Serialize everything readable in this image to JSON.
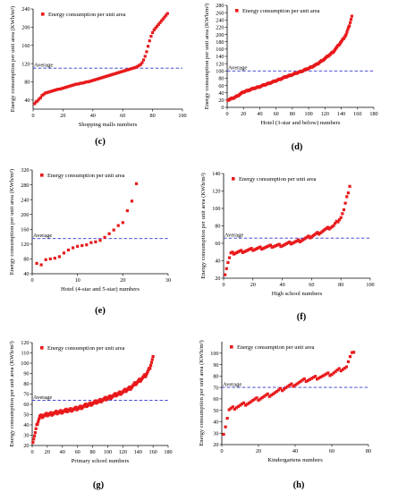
{
  "chart_data": [
    {
      "type": "scatter",
      "panel": "(c)",
      "legend": "Energy consumption per unit area",
      "xlabel": "Shopping malls numbers",
      "ylabel": "Energy consumption per unit area (KWh/m²)",
      "average_label": "Average",
      "average": 110,
      "xlim": [
        0,
        100
      ],
      "ylim": [
        20,
        240
      ],
      "xticks": [
        0,
        20,
        40,
        60,
        80,
        100
      ],
      "yticks": [
        40,
        80,
        120,
        160,
        200,
        240
      ],
      "colors": {
        "points": "#e8191b",
        "average": "#3333cc"
      },
      "x": [
        1,
        2,
        3,
        4,
        5,
        6,
        7,
        8,
        9,
        10,
        11,
        12,
        13,
        14,
        15,
        16,
        17,
        18,
        19,
        20,
        21,
        22,
        23,
        24,
        25,
        26,
        27,
        28,
        29,
        30,
        31,
        32,
        33,
        34,
        35,
        36,
        37,
        38,
        39,
        40,
        41,
        42,
        43,
        44,
        45,
        46,
        47,
        48,
        49,
        50,
        51,
        52,
        53,
        54,
        55,
        56,
        57,
        58,
        59,
        60,
        61,
        62,
        63,
        64,
        65,
        66,
        67,
        68,
        69,
        70,
        71,
        72,
        73,
        74,
        75,
        76,
        77,
        78,
        79,
        80,
        81,
        82,
        83,
        84,
        85,
        86,
        87,
        88,
        89,
        90
      ],
      "y": [
        32,
        36,
        38,
        42,
        45,
        50,
        52,
        55,
        56,
        57,
        58,
        59,
        60,
        61,
        62,
        63,
        64,
        64,
        65,
        66,
        67,
        68,
        69,
        70,
        71,
        72,
        73,
        74,
        75,
        75,
        76,
        77,
        77,
        78,
        79,
        80,
        80,
        81,
        82,
        83,
        84,
        85,
        86,
        87,
        88,
        89,
        90,
        91,
        92,
        93,
        94,
        95,
        96,
        97,
        98,
        99,
        100,
        101,
        102,
        103,
        104,
        105,
        106,
        107,
        108,
        109,
        110,
        111,
        112,
        114,
        116,
        118,
        122,
        128,
        136,
        146,
        158,
        170,
        180,
        188,
        194,
        198,
        202,
        206,
        210,
        214,
        218,
        222,
        226,
        230
      ]
    },
    {
      "type": "scatter",
      "panel": "(d)",
      "legend": "Energy consumption per unit area",
      "xlabel": "Hotel (3-star and below) numbers",
      "ylabel": "Energy consumption per unit area (KWh/m²)",
      "average_label": "Average",
      "average": 100,
      "xlim": [
        0,
        180
      ],
      "ylim": [
        0,
        280
      ],
      "xticks": [
        0,
        20,
        40,
        60,
        80,
        100,
        120,
        140,
        160,
        180
      ],
      "yticks": [
        0,
        20,
        40,
        60,
        80,
        100,
        120,
        140,
        160,
        180,
        200,
        220,
        240,
        260,
        280
      ],
      "colors": {
        "points": "#e8191b",
        "average": "#3333cc"
      },
      "curve": {
        "n": 153,
        "points": [
          [
            1,
            20
          ],
          [
            10,
            28
          ],
          [
            20,
            42
          ],
          [
            30,
            50
          ],
          [
            40,
            57
          ],
          [
            50,
            65
          ],
          [
            60,
            73
          ],
          [
            70,
            82
          ],
          [
            80,
            90
          ],
          [
            90,
            98
          ],
          [
            100,
            107
          ],
          [
            110,
            118
          ],
          [
            120,
            134
          ],
          [
            130,
            152
          ],
          [
            140,
            180
          ],
          [
            146,
            200
          ],
          [
            150,
            225
          ],
          [
            153,
            250
          ]
        ]
      }
    },
    {
      "type": "scatter",
      "panel": "(e)",
      "legend": "Energy consumption per unit area",
      "xlabel": "Hotel (4-star and 5-star) numbers",
      "ylabel": "Energy consumption per unit area (KWh/m²)",
      "average_label": "Average",
      "average": 135,
      "xlim": [
        0,
        30
      ],
      "ylim": [
        40,
        320
      ],
      "xticks": [
        0,
        10,
        20,
        30
      ],
      "yticks": [
        40,
        80,
        120,
        160,
        200,
        240,
        280,
        320
      ],
      "colors": {
        "points": "#e8191b",
        "average": "#3333cc"
      },
      "x": [
        1,
        2,
        3,
        4,
        5,
        6,
        7,
        8,
        9,
        10,
        11,
        12,
        13,
        14,
        15,
        16,
        17,
        18,
        19,
        20,
        21,
        22,
        23
      ],
      "y": [
        68,
        64,
        78,
        80,
        82,
        86,
        96,
        104,
        110,
        114,
        116,
        118,
        124,
        126,
        130,
        138,
        148,
        158,
        170,
        178,
        210,
        236,
        283
      ]
    },
    {
      "type": "scatter",
      "panel": "(f)",
      "legend": "Energy consumption per unit area",
      "xlabel": "High school numbers",
      "ylabel": "Energy consumption per unit area (KWh/m²)",
      "average_label": "Average",
      "average": 66,
      "xlim": [
        0,
        100
      ],
      "ylim": [
        20,
        140
      ],
      "xticks": [
        0,
        20,
        40,
        60,
        80,
        100
      ],
      "yticks": [
        20,
        40,
        60,
        80,
        100,
        120,
        140
      ],
      "colors": {
        "points": "#e8191b",
        "average": "#3333cc"
      },
      "curve": {
        "n": 86,
        "points": [
          [
            1,
            25
          ],
          [
            3,
            38
          ],
          [
            5,
            48
          ],
          [
            10,
            50
          ],
          [
            20,
            53
          ],
          [
            30,
            56
          ],
          [
            40,
            58
          ],
          [
            50,
            62
          ],
          [
            60,
            68
          ],
          [
            70,
            76
          ],
          [
            75,
            80
          ],
          [
            78,
            86
          ],
          [
            80,
            90
          ],
          [
            82,
            98
          ],
          [
            84,
            112
          ],
          [
            86,
            126
          ]
        ]
      }
    },
    {
      "type": "scatter",
      "panel": "(g)",
      "legend": "Energy consumption per unit area",
      "xlabel": "Primary school numbers",
      "ylabel": "Energy consumption per unit area (KWh/m²)",
      "average_label": "Average",
      "average": 64,
      "xlim": [
        0,
        180
      ],
      "ylim": [
        20,
        120
      ],
      "xticks": [
        0,
        20,
        40,
        60,
        80,
        100,
        120,
        140,
        160,
        180
      ],
      "yticks": [
        20,
        30,
        40,
        50,
        60,
        70,
        80,
        90,
        100,
        110,
        120
      ],
      "colors": {
        "points": "#e8191b",
        "average": "#3333cc"
      },
      "curve": {
        "n": 160,
        "points": [
          [
            1,
            24
          ],
          [
            4,
            32
          ],
          [
            7,
            42
          ],
          [
            10,
            48
          ],
          [
            20,
            50
          ],
          [
            40,
            53
          ],
          [
            60,
            56
          ],
          [
            80,
            61
          ],
          [
            100,
            66
          ],
          [
            120,
            72
          ],
          [
            130,
            76
          ],
          [
            140,
            82
          ],
          [
            150,
            88
          ],
          [
            155,
            94
          ],
          [
            160,
            106
          ]
        ]
      }
    },
    {
      "type": "scatter",
      "panel": "(h)",
      "legend": "Energy consumption per unit area",
      "xlabel": "Kindergartens numbers",
      "ylabel": "Energy consumption per unit area (KWh/m²)",
      "average_label": "Average",
      "average": 70,
      "xlim": [
        0,
        80
      ],
      "ylim": [
        20,
        110
      ],
      "xticks": [
        0,
        20,
        40,
        60,
        80
      ],
      "yticks": [
        20,
        30,
        40,
        50,
        60,
        70,
        80,
        90,
        100
      ],
      "colors": {
        "points": "#e8191b",
        "average": "#3333cc"
      },
      "curve": {
        "n": 72,
        "points": [
          [
            1,
            30
          ],
          [
            2,
            36
          ],
          [
            4,
            50
          ],
          [
            8,
            53
          ],
          [
            15,
            57
          ],
          [
            20,
            60
          ],
          [
            25,
            63
          ],
          [
            30,
            66
          ],
          [
            35,
            70
          ],
          [
            40,
            73
          ],
          [
            45,
            76
          ],
          [
            50,
            78
          ],
          [
            55,
            80
          ],
          [
            60,
            82
          ],
          [
            65,
            86
          ],
          [
            68,
            88
          ],
          [
            70,
            96
          ],
          [
            72,
            102
          ]
        ]
      }
    }
  ]
}
